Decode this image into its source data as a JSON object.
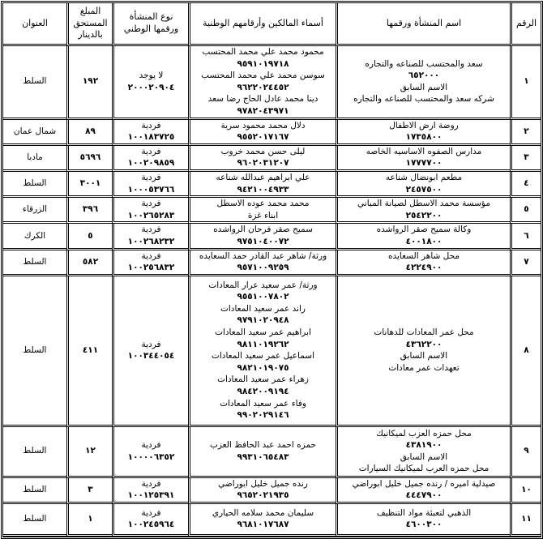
{
  "headers": [
    "الرقم",
    "اسم المنشأة ورقمها",
    "أسماء المالكين وأرقامهم الوطنية",
    "نوع المنشأة ورقمها الوطني",
    "المبلغ المستحق بالدينار",
    "العنوان"
  ],
  "rows": [
    {
      "no": "١",
      "establishment": [
        "سعد والمحتسب للصناعه والتجاره",
        "٦٥٢٠٠٠",
        "الاسم السابق",
        "شركه سعد والمحتسب للصناعه والتجاره"
      ],
      "owners": [
        "محمود محمد علي محمد المحتسب",
        "٩٥٩١٠١٩٧١٨",
        "سوسن محمد علي محمد المحتسب",
        "٩٦٢٢٠٢٤٤٥٢",
        "دينا محمد عادل الحاج  رضا سعد",
        "٩٧٨٢٠٤٣٩٧١"
      ],
      "type": [
        "لا يوجد",
        "٢٠٠٠٢٠٩٠٤"
      ],
      "amount": "١٩٢",
      "address": "السلط"
    },
    {
      "no": "٢",
      "establishment": [
        "روضة ارض الاطفال",
        "١٧٣٥٨٠٠"
      ],
      "owners": [
        "دلال محمد محمود سرية",
        "٩٥٥٢٠١٧١٦٧"
      ],
      "type": [
        "فردية",
        "١٠٠١٨٣٧٢٥"
      ],
      "amount": "٨٩",
      "address": "شمال عمان"
    },
    {
      "no": "٣",
      "establishment": [
        "مدارس الصفوه الاساسيه الخاصه",
        "١٧٧٧٧٠٠"
      ],
      "owners": [
        "ليلى حسن محمد خروب",
        "٩٦٠٢٠٣١٢٠٧"
      ],
      "type": [
        "فردية",
        "١٠٠٢٠٩٨٥٩"
      ],
      "amount": "٥٦٩٦",
      "address": "مادبا"
    },
    {
      "no": "٤",
      "establishment": [
        "مطعم ابونضال شناعه",
        "٢٤٥٧٥٠٠"
      ],
      "owners": [
        "علي ابراهيم عبدالله شناعه",
        "٩٤٢١٠٠٤٩٣٣"
      ],
      "type": [
        "فردية",
        "١٠٠٠٥٣٧٦٦"
      ],
      "amount": "٣٠٠١",
      "address": "السلط"
    },
    {
      "no": "٥",
      "establishment": [
        "مؤسسة محمد الاسطل لصيانة المباني",
        "٢٥٤٢٢٠٠"
      ],
      "owners": [
        "محمد محمد عوده الاسطل",
        "ابناء غزة"
      ],
      "type": [
        "فردية",
        "١٠٠٢٦٥٢٨٣"
      ],
      "amount": "٣٩٦",
      "address": "الزرقاء"
    },
    {
      "no": "٦",
      "establishment": [
        "وكالة سميح صقر الرواشده",
        "٤٠٠١٨٠٠"
      ],
      "owners": [
        "سميح صقر فرحان الرواشده",
        "٩٧٥١٠٤٠٠٧٢"
      ],
      "type": [
        "فردية",
        "١٠٠٢٦٨٢٣٢"
      ],
      "amount": "٥",
      "address": "الكرك"
    },
    {
      "no": "٧",
      "establishment": [
        "محل شاهر السعايده",
        "٤٢٢٤٩٠٠"
      ],
      "owners": [
        "ورثة/ شاهر عبد القادر حمد السعايده",
        "٩٥٧١٠٠٩٢٥٩"
      ],
      "type": [
        "فردية",
        "١٠٠٢٥٦٨٣٢"
      ],
      "amount": "٥٨٢",
      "address": "السلط"
    },
    {
      "no": "٨",
      "establishment": [
        "محل عمر المعادات للدهانات",
        "٤٣٦٢٢٠٠",
        "الاسم السابق",
        "تعهدات عمر معادات"
      ],
      "owners": [
        "ورثة/ عمر سعيد عرار المعادات",
        "٩٥٥١٠٠٧٨٠٢",
        "راند عمر سعيد المعادات",
        "٩٧٩١٠٢٠٩٤٨",
        "ابراهيم عمر سعيد المعادات",
        "٩٨١١٠١٩٢٦٢",
        "اسماعيل عمر سعيد المعادات",
        "٩٨٢١٠١٩٠٧٥",
        "زهراء عمر سعيد المعادات",
        "٩٨٤٢٠٠٩١٩٤",
        "وفاء عمر سعيد المعادات",
        "٩٩٠٢٠٢٩١٤٦"
      ],
      "type": [
        "فردية",
        "١٠٠٣٤٤٠٥٤"
      ],
      "amount": "٤١١",
      "address": "السلط"
    },
    {
      "no": "٩",
      "establishment": [
        "محل حمزه العزب لميكانيك",
        "٤٣٨١٩٠٠",
        "الاسم السابق",
        "محل حمزه العرب لميكانيك السيارات"
      ],
      "owners": [
        "حمزه احمد عبد الحافظ العزب",
        "٩٩٣١٠٦٥٤٨٣"
      ],
      "type": [
        "فردية",
        "١٠٠٠٠٦٣٥٢"
      ],
      "amount": "١٢",
      "address": "السلط"
    },
    {
      "no": "١٠",
      "establishment": [
        "صيدلية اميره / رنده جميل خليل ابوراضي",
        "٤٤٤٧٩٠٠"
      ],
      "owners": [
        "رنده جميل خليل ابوراضي",
        "٩٦٥٢٠٢١٩٣٥"
      ],
      "type": [
        "فردية",
        "١٠٠١٢٥٣٩١"
      ],
      "amount": "٣",
      "address": "السلط"
    },
    {
      "no": "١١",
      "establishment": [
        "الذهبي لتعبئة مواد التنظيف",
        "٤٦٠٠٣٠٠"
      ],
      "owners": [
        "سليمان محمد سلامه الحياري",
        "٩٦٨١٠١٧٦٨٧"
      ],
      "type": [
        "فردية",
        "١٠٠٢٤٥٩٦٤"
      ],
      "amount": "١",
      "address": "السلط"
    }
  ]
}
